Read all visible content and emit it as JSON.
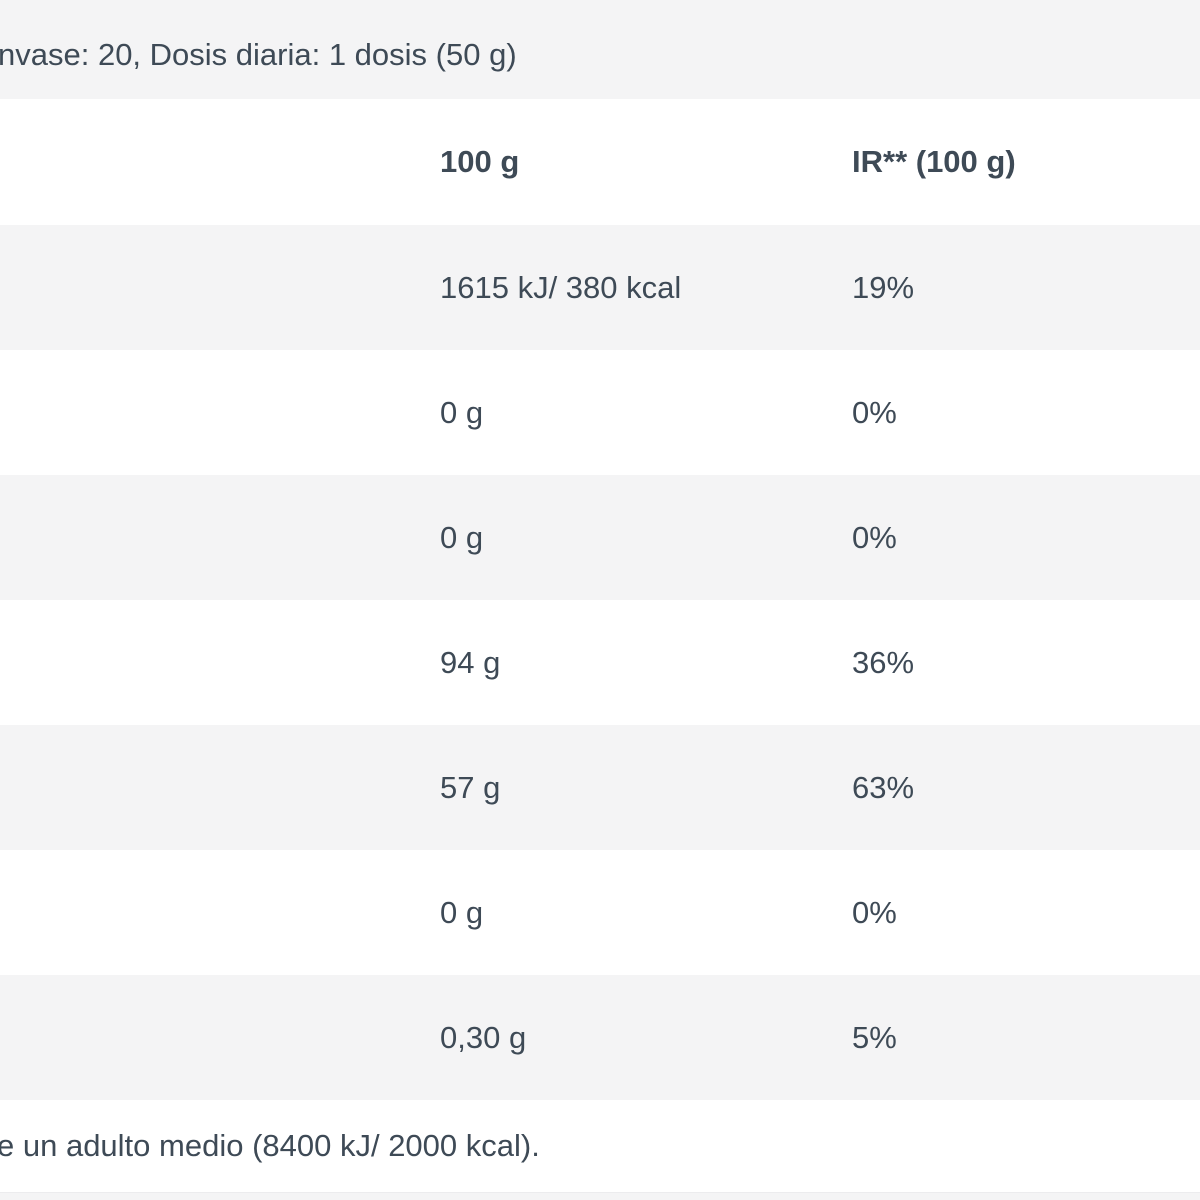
{
  "theme": {
    "stripe_color": "#f4f4f5",
    "text_color": "#3e4a56",
    "background_color": "#ffffff"
  },
  "header_note": {
    "text": "nvase: 20, Dosis diaria: 1 dosis (50 g)"
  },
  "table": {
    "columns": [
      "",
      "100 g",
      "IR** (100 g)"
    ],
    "rows": [
      {
        "name": "",
        "per_100g": "1615 kJ/ 380 kcal",
        "ir": "19%"
      },
      {
        "name": "",
        "per_100g": "0 g",
        "ir": "0%"
      },
      {
        "name": "",
        "per_100g": "0 g",
        "ir": "0%"
      },
      {
        "name": "",
        "per_100g": "94 g",
        "ir": "36%"
      },
      {
        "name": "",
        "per_100g": "57 g",
        "ir": "63%"
      },
      {
        "name": "",
        "per_100g": "0 g",
        "ir": "0%"
      },
      {
        "name": "",
        "per_100g": "0,30 g",
        "ir": "5%"
      }
    ]
  },
  "footnote": {
    "text": "e un adulto medio (8400 kJ/ 2000 kcal)."
  }
}
